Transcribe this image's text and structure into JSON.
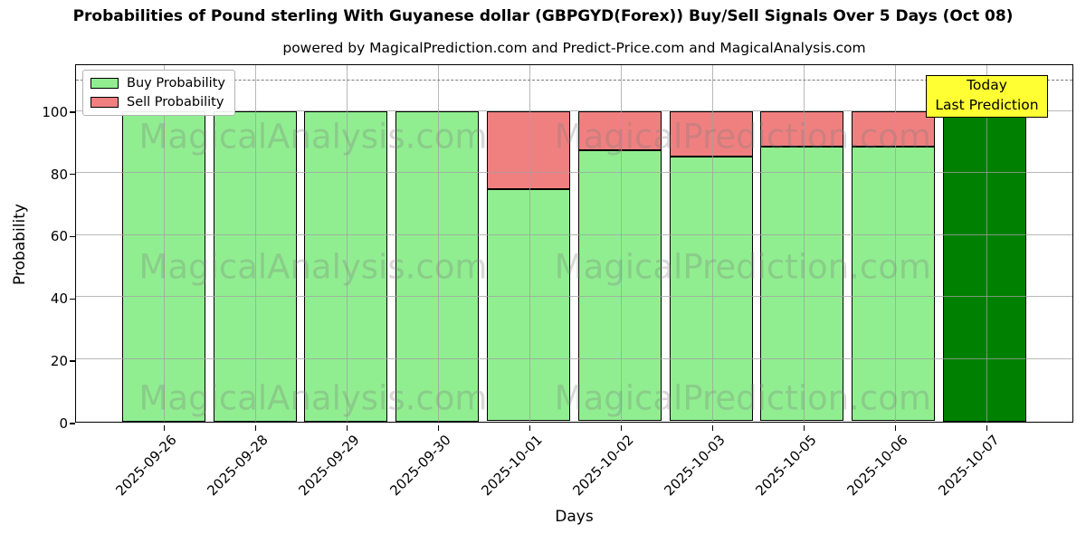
{
  "title": "Probabilities of Pound sterling With Guyanese dollar (GBPGYD(Forex)) Buy/Sell Signals Over 5 Days (Oct 08)",
  "subtitle": "powered by MagicalPrediction.com and Predict-Price.com and MagicalAnalysis.com",
  "legend": {
    "items": [
      {
        "label": "Buy Probability",
        "color": "#90EE90"
      },
      {
        "label": "Sell Probability",
        "color": "#F08080"
      }
    ]
  },
  "annotation_box": {
    "line1": "Today",
    "line2": "Last Prediction",
    "bg_color": "#FFFF33"
  },
  "watermarks": {
    "left": "MagicalAnalysis.com",
    "right": "MagicalPrediction.com"
  },
  "chart_data": {
    "type": "bar",
    "stacked": true,
    "title": "Probabilities of Pound sterling With Guyanese dollar (GBPGYD(Forex)) Buy/Sell Signals Over 5 Days (Oct 08)",
    "xlabel": "Days",
    "ylabel": "Probability",
    "categories": [
      "2025-09-26",
      "2025-09-28",
      "2025-09-29",
      "2025-09-30",
      "2025-10-01",
      "2025-10-02",
      "2025-10-03",
      "2025-10-05",
      "2025-10-06",
      "2025-10-07"
    ],
    "series": [
      {
        "name": "Buy Probability",
        "color": "#90EE90",
        "values": [
          100,
          100,
          100,
          100,
          75,
          87.5,
          85.5,
          88.5,
          88.5,
          100
        ]
      },
      {
        "name": "Sell Probability",
        "color": "#F08080",
        "values": [
          0,
          0,
          0,
          0,
          25,
          12.5,
          14.5,
          11.5,
          11.5,
          0
        ]
      }
    ],
    "today_bar": {
      "index": 9,
      "color": "#008000",
      "note": "Today Last Prediction"
    },
    "yticks": [
      0,
      20,
      40,
      60,
      80,
      100
    ],
    "ylim": [
      0,
      115
    ],
    "dashed_line_y": 110,
    "grid": true,
    "legend_position": "upper-left"
  }
}
